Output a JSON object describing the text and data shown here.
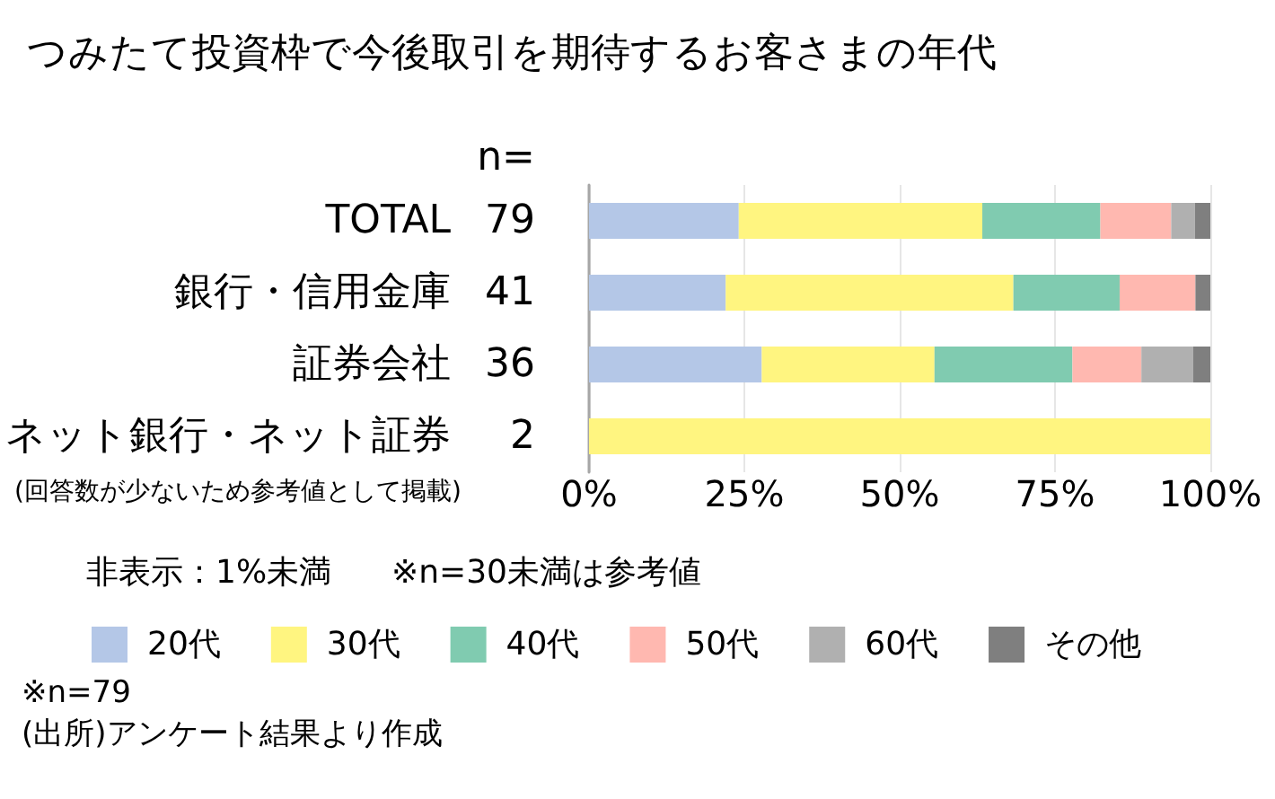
{
  "chart_data": {
    "type": "bar",
    "orientation": "horizontal",
    "stacked": true,
    "title": "つみたて投資枠で今後取引を期待するお客さまの年代",
    "categories": [
      "TOTAL",
      "銀行・信用金庫",
      "証券会社",
      "ネット銀行・ネット証券"
    ],
    "series": [
      {
        "name": "20代",
        "color": "#b4c7e7",
        "values": [
          24.1,
          22.0,
          27.8,
          null
        ]
      },
      {
        "name": "30代",
        "color": "#fff580",
        "values": [
          39.2,
          46.3,
          27.8,
          100
        ]
      },
      {
        "name": "40代",
        "color": "#80cbb0",
        "values": [
          19.0,
          17.1,
          22.2,
          null
        ]
      },
      {
        "name": "50代",
        "color": "#ffb8b0",
        "values": [
          11.4,
          12.2,
          11.1,
          null
        ]
      },
      {
        "name": "60代",
        "color": "#b0b0b0",
        "values": [
          3.8,
          null,
          8.3,
          null
        ]
      },
      {
        "name": "その他",
        "color": "#7f7f7f",
        "values": [
          2.5,
          2.4,
          2.8,
          null
        ]
      }
    ],
    "xlim": [
      0,
      100
    ],
    "xticks": [
      {
        "value": 0,
        "label": "0%"
      },
      {
        "value": 25,
        "label": "25%"
      },
      {
        "value": 50,
        "label": "50%"
      },
      {
        "value": 75,
        "label": "75%"
      },
      {
        "value": 100,
        "label": "100%"
      }
    ],
    "grid": "x",
    "legend": "bottom",
    "annotations": [
      "n=",
      "79",
      "41",
      "36",
      "2",
      "(回答数が少ないため参考値として掲載)",
      "非表示：1%未満",
      "※n=30未満は参考値",
      "※n=79",
      "(出所)アンケート結果より作成"
    ]
  }
}
